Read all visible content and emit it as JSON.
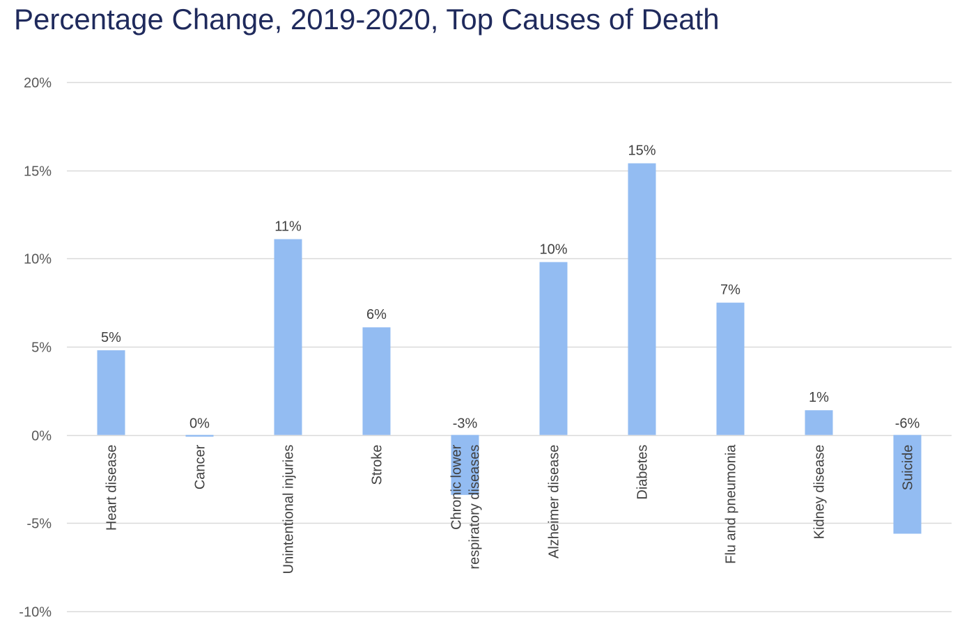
{
  "chart_data": {
    "type": "bar",
    "title": "Percentage Change, 2019-2020, Top Causes of Death",
    "xlabel": "",
    "ylabel": "",
    "categories": [
      "Heart disease",
      "Cancer",
      "Unintentional injuries",
      "Stroke",
      "Chronic lower respiratory diseases",
      "Alzheimer disease",
      "Diabetes",
      "Flu and pneumonia",
      "Kidney disease",
      "Suicide"
    ],
    "category_label_lines": [
      [
        "Heart disease"
      ],
      [
        "Cancer"
      ],
      [
        "Unintentional injuries"
      ],
      [
        "Stroke"
      ],
      [
        "Chronic lower",
        "respiratory diseases"
      ],
      [
        "Alzheimer disease"
      ],
      [
        "Diabetes"
      ],
      [
        "Flu and pneumonia"
      ],
      [
        "Kidney disease"
      ],
      [
        "Suicide"
      ]
    ],
    "values": [
      4.8,
      -0.1,
      11.1,
      6.1,
      -3.4,
      9.8,
      15.4,
      7.5,
      1.4,
      -5.6
    ],
    "data_labels": [
      "5%",
      "0%",
      "11%",
      "6%",
      "-3%",
      "10%",
      "15%",
      "7%",
      "1%",
      "-6%"
    ],
    "ylim": [
      -10,
      20
    ],
    "yticks": [
      -10,
      -5,
      0,
      5,
      10,
      15,
      20
    ],
    "ytick_labels": [
      "-10%",
      "-5%",
      "0%",
      "5%",
      "10%",
      "15%",
      "20%"
    ],
    "grid": true,
    "legend": "none",
    "colors": {
      "bar": "#93bcf2",
      "grid": "#d9d9d9",
      "title": "#1f2a5c",
      "text": "#404040"
    }
  }
}
